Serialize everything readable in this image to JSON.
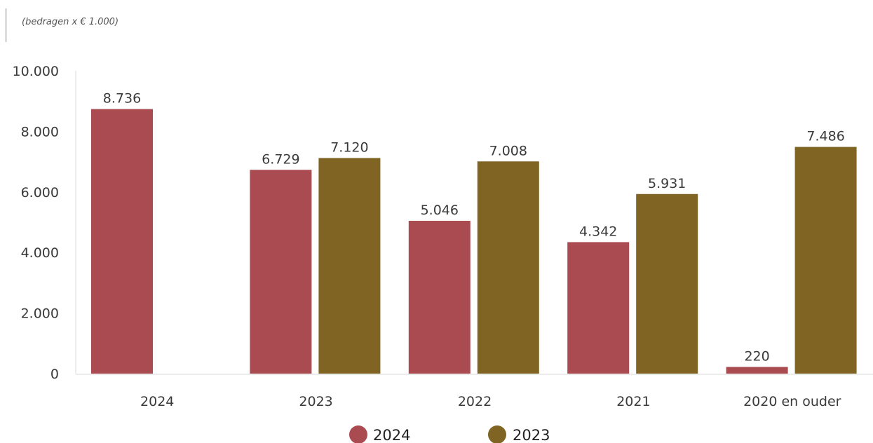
{
  "subtitle": "(bedragen x € 1.000)",
  "chart_data": {
    "type": "bar",
    "categories": [
      "2024",
      "2023",
      "2022",
      "2021",
      "2020 en ouder"
    ],
    "series": [
      {
        "name": "2024",
        "color": "#a94b51",
        "values": [
          8736,
          6729,
          5046,
          4342,
          220
        ],
        "labels": [
          "8.736",
          "6.729",
          "5.046",
          "4.342",
          "220"
        ]
      },
      {
        "name": "2023",
        "color": "#7f6424",
        "values": [
          null,
          7120,
          7008,
          5931,
          7486
        ],
        "labels": [
          "",
          "7.120",
          "7.008",
          "5.931",
          "7.486"
        ]
      }
    ],
    "ylim": [
      0,
      10000
    ],
    "yticks": [
      0,
      2000,
      4000,
      6000,
      8000,
      10000
    ],
    "ytick_labels": [
      "0",
      "2.000",
      "4.000",
      "6.000",
      "8.000",
      "10.000"
    ],
    "grid": false,
    "legend_position": "bottom"
  }
}
